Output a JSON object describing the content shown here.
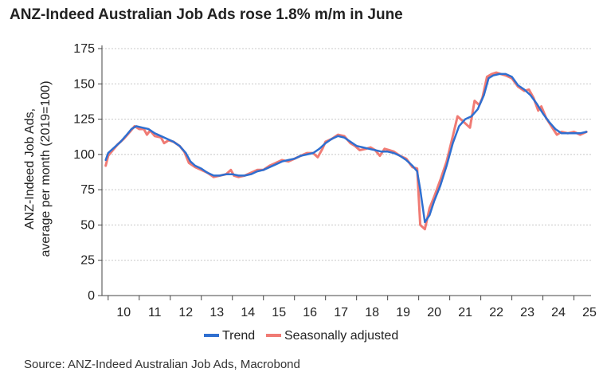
{
  "chart_data": {
    "type": "line",
    "title": "ANZ-Indeed Australian Job Ads rose 1.8% m/m in June",
    "ylabel_line1": "ANZ-Indeed Job Ads,",
    "ylabel_line2": "average per month (2019=100)",
    "xlabel": "",
    "ylim": [
      0,
      175
    ],
    "yticks": [
      "0",
      "25",
      "50",
      "75",
      "100",
      "125",
      "150",
      "175"
    ],
    "xticks": [
      "10",
      "11",
      "12",
      "13",
      "14",
      "15",
      "16",
      "17",
      "18",
      "19",
      "20",
      "21",
      "22",
      "23",
      "24",
      "25"
    ],
    "xlim": [
      2009.8,
      2025.55
    ],
    "grid": true,
    "legend_position": "bottom",
    "series": [
      {
        "name": "Trend",
        "color": "#2f6fd0",
        "points": [
          [
            2009.92,
            96
          ],
          [
            2010.0,
            101
          ],
          [
            2010.2,
            105
          ],
          [
            2010.4,
            109
          ],
          [
            2010.6,
            114
          ],
          [
            2010.75,
            118
          ],
          [
            2010.9,
            120
          ],
          [
            2011.1,
            119
          ],
          [
            2011.3,
            118
          ],
          [
            2011.5,
            115
          ],
          [
            2011.7,
            113
          ],
          [
            2011.9,
            111
          ],
          [
            2012.1,
            109
          ],
          [
            2012.3,
            106
          ],
          [
            2012.5,
            101
          ],
          [
            2012.65,
            95
          ],
          [
            2012.8,
            92
          ],
          [
            2013.0,
            90
          ],
          [
            2013.2,
            87
          ],
          [
            2013.4,
            85
          ],
          [
            2013.6,
            85
          ],
          [
            2013.8,
            86
          ],
          [
            2014.0,
            86
          ],
          [
            2014.2,
            85
          ],
          [
            2014.4,
            85
          ],
          [
            2014.6,
            86
          ],
          [
            2014.8,
            88
          ],
          [
            2015.0,
            89
          ],
          [
            2015.2,
            91
          ],
          [
            2015.4,
            93
          ],
          [
            2015.6,
            95
          ],
          [
            2015.8,
            96
          ],
          [
            2016.0,
            97
          ],
          [
            2016.2,
            99
          ],
          [
            2016.4,
            100
          ],
          [
            2016.6,
            101
          ],
          [
            2016.8,
            104
          ],
          [
            2017.0,
            108
          ],
          [
            2017.2,
            111
          ],
          [
            2017.4,
            113
          ],
          [
            2017.6,
            112
          ],
          [
            2017.8,
            109
          ],
          [
            2018.0,
            106
          ],
          [
            2018.2,
            105
          ],
          [
            2018.4,
            104
          ],
          [
            2018.6,
            103
          ],
          [
            2018.8,
            102
          ],
          [
            2019.0,
            102
          ],
          [
            2019.2,
            101
          ],
          [
            2019.4,
            99
          ],
          [
            2019.6,
            96
          ],
          [
            2019.8,
            92
          ],
          [
            2019.95,
            88
          ],
          [
            2020.05,
            75
          ],
          [
            2020.2,
            52
          ],
          [
            2020.35,
            57
          ],
          [
            2020.5,
            67
          ],
          [
            2020.7,
            78
          ],
          [
            2020.9,
            92
          ],
          [
            2021.1,
            108
          ],
          [
            2021.3,
            120
          ],
          [
            2021.5,
            125
          ],
          [
            2021.7,
            127
          ],
          [
            2021.9,
            132
          ],
          [
            2022.1,
            142
          ],
          [
            2022.25,
            154
          ],
          [
            2022.4,
            156
          ],
          [
            2022.6,
            157
          ],
          [
            2022.8,
            157
          ],
          [
            2023.0,
            155
          ],
          [
            2023.2,
            149
          ],
          [
            2023.4,
            146
          ],
          [
            2023.6,
            142
          ],
          [
            2023.8,
            136
          ],
          [
            2024.0,
            129
          ],
          [
            2024.2,
            123
          ],
          [
            2024.4,
            118
          ],
          [
            2024.6,
            115
          ],
          [
            2024.8,
            115
          ],
          [
            2025.0,
            115
          ],
          [
            2025.2,
            115
          ],
          [
            2025.4,
            116
          ]
        ]
      },
      {
        "name": "Seasonally adjusted",
        "color": "#f07b74",
        "points": [
          [
            2009.92,
            92
          ],
          [
            2010.0,
            99
          ],
          [
            2010.15,
            103
          ],
          [
            2010.3,
            107
          ],
          [
            2010.5,
            111
          ],
          [
            2010.7,
            116
          ],
          [
            2010.85,
            120
          ],
          [
            2011.0,
            118
          ],
          [
            2011.15,
            118
          ],
          [
            2011.25,
            114
          ],
          [
            2011.35,
            117
          ],
          [
            2011.5,
            113
          ],
          [
            2011.7,
            112
          ],
          [
            2011.8,
            108
          ],
          [
            2011.95,
            110
          ],
          [
            2012.1,
            109
          ],
          [
            2012.3,
            106
          ],
          [
            2012.45,
            102
          ],
          [
            2012.6,
            94
          ],
          [
            2012.8,
            91
          ],
          [
            2013.0,
            89
          ],
          [
            2013.2,
            87
          ],
          [
            2013.4,
            84
          ],
          [
            2013.6,
            85
          ],
          [
            2013.8,
            86
          ],
          [
            2013.95,
            89
          ],
          [
            2014.05,
            85
          ],
          [
            2014.2,
            84
          ],
          [
            2014.4,
            85
          ],
          [
            2014.6,
            87
          ],
          [
            2014.8,
            89
          ],
          [
            2015.0,
            89
          ],
          [
            2015.2,
            92
          ],
          [
            2015.4,
            94
          ],
          [
            2015.6,
            96
          ],
          [
            2015.8,
            95
          ],
          [
            2016.0,
            97
          ],
          [
            2016.2,
            99
          ],
          [
            2016.4,
            101
          ],
          [
            2016.6,
            101
          ],
          [
            2016.75,
            98
          ],
          [
            2016.9,
            104
          ],
          [
            2017.0,
            109
          ],
          [
            2017.2,
            111
          ],
          [
            2017.4,
            114
          ],
          [
            2017.6,
            113
          ],
          [
            2017.8,
            108
          ],
          [
            2017.95,
            106
          ],
          [
            2018.1,
            103
          ],
          [
            2018.3,
            104
          ],
          [
            2018.45,
            105
          ],
          [
            2018.6,
            103
          ],
          [
            2018.75,
            99
          ],
          [
            2018.9,
            104
          ],
          [
            2019.05,
            103
          ],
          [
            2019.2,
            102
          ],
          [
            2019.4,
            99
          ],
          [
            2019.6,
            97
          ],
          [
            2019.8,
            91
          ],
          [
            2019.95,
            90
          ],
          [
            2020.05,
            50
          ],
          [
            2020.2,
            47
          ],
          [
            2020.35,
            62
          ],
          [
            2020.5,
            70
          ],
          [
            2020.7,
            82
          ],
          [
            2020.9,
            95
          ],
          [
            2021.1,
            113
          ],
          [
            2021.25,
            127
          ],
          [
            2021.4,
            124
          ],
          [
            2021.55,
            121
          ],
          [
            2021.65,
            119
          ],
          [
            2021.8,
            138
          ],
          [
            2021.95,
            135
          ],
          [
            2022.05,
            140
          ],
          [
            2022.2,
            155
          ],
          [
            2022.35,
            157
          ],
          [
            2022.5,
            158
          ],
          [
            2022.65,
            157
          ],
          [
            2022.8,
            156
          ],
          [
            2023.0,
            154
          ],
          [
            2023.2,
            148
          ],
          [
            2023.4,
            145
          ],
          [
            2023.55,
            146
          ],
          [
            2023.7,
            140
          ],
          [
            2023.85,
            131
          ],
          [
            2023.95,
            134
          ],
          [
            2024.1,
            126
          ],
          [
            2024.3,
            119
          ],
          [
            2024.45,
            114
          ],
          [
            2024.6,
            116
          ],
          [
            2024.8,
            115
          ],
          [
            2025.0,
            116
          ],
          [
            2025.2,
            114
          ],
          [
            2025.4,
            116
          ]
        ]
      }
    ]
  },
  "source": "Source: ANZ-Indeed Australian Job Ads, Macrobond"
}
